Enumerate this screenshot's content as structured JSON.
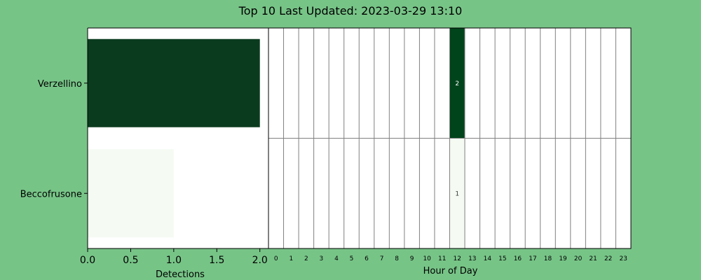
{
  "title": "Top 10 Last Updated: 2023-03-29 13:10",
  "colors": {
    "figure_bg": "#77c487",
    "plot_bg": "#ffffff",
    "grid": "#808080",
    "dark_green": "#0a3b1f",
    "heat_high": "#00441b",
    "light_green": "#f5fbf3",
    "text_light": "#ffffff",
    "text_dark": "#333333"
  },
  "chart_data": [
    {
      "type": "bar",
      "orientation": "horizontal",
      "categories": [
        "Verzellino",
        "Beccofrusone"
      ],
      "values": [
        2,
        1
      ],
      "xlabel": "Detections",
      "xlim": [
        0,
        2.1
      ],
      "xticks": [
        0,
        0.5,
        1,
        1.5,
        2
      ],
      "xtick_labels": [
        "0.0",
        "0.5",
        "1.0",
        "1.5",
        "2.0"
      ]
    },
    {
      "type": "heatmap",
      "rows": [
        "Verzellino",
        "Beccofrusone"
      ],
      "xlabel": "Hour of Day",
      "hours": [
        "0",
        "1",
        "2",
        "3",
        "4",
        "5",
        "6",
        "7",
        "8",
        "9",
        "10",
        "11",
        "12",
        "13",
        "14",
        "15",
        "16",
        "17",
        "18",
        "19",
        "20",
        "21",
        "22",
        "23"
      ],
      "values": [
        [
          0,
          0,
          0,
          0,
          0,
          0,
          0,
          0,
          0,
          0,
          0,
          0,
          2,
          0,
          0,
          0,
          0,
          0,
          0,
          0,
          0,
          0,
          0,
          0
        ],
        [
          0,
          0,
          0,
          0,
          0,
          0,
          0,
          0,
          0,
          0,
          0,
          0,
          1,
          0,
          0,
          0,
          0,
          0,
          0,
          0,
          0,
          0,
          0,
          0
        ]
      ]
    }
  ]
}
